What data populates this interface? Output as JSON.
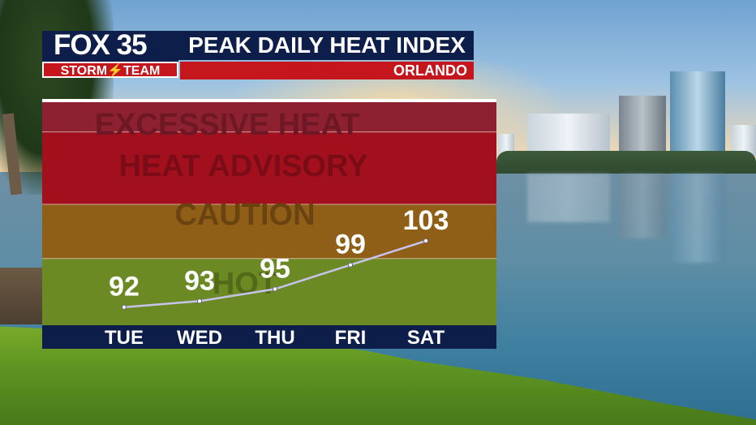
{
  "header": {
    "logo_main": "FOX 35",
    "logo_sub": "STORM⚡TEAM",
    "title": "PEAK DAILY HEAT INDEX",
    "location": "ORLANDO"
  },
  "colors": {
    "navy": "#0d1e4a",
    "red": "#c4161c",
    "excessive_heat": "#8e2131",
    "heat_advisory": "#a3101d",
    "caution": "#8f5f18",
    "hot": "#6b8a23",
    "line": "#c8c3ee"
  },
  "chart_data": {
    "type": "line",
    "title": "PEAK DAILY HEAT INDEX",
    "categories": [
      "TUE",
      "WED",
      "THU",
      "FRI",
      "SAT"
    ],
    "series": [
      {
        "values": [
          92,
          93,
          95,
          99,
          103
        ]
      }
    ],
    "data_labels": [
      "92",
      "93",
      "95",
      "99",
      "103"
    ],
    "ylim": [
      89,
      126
    ],
    "bands": [
      {
        "label": "EXCESSIVE HEAT",
        "from": 121,
        "to": 126
      },
      {
        "label": "HEAT ADVISORY",
        "from": 109,
        "to": 121
      },
      {
        "label": "CAUTION",
        "from": 100,
        "to": 109
      },
      {
        "label": "HOT",
        "from": 89,
        "to": 100
      }
    ],
    "grid": false,
    "legend": "none"
  }
}
